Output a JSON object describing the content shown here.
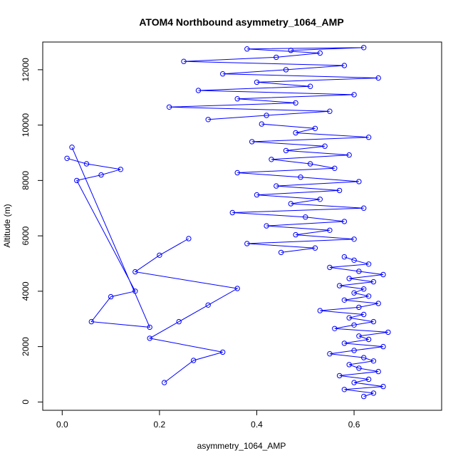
{
  "chart_data": {
    "type": "scatter",
    "title": "ATOM4 Northbound asymmetry_1064_AMP",
    "xlabel": "asymmetry_1064_AMP",
    "ylabel": "Altitude (m)",
    "xlim": [
      -0.04,
      0.78
    ],
    "ylim": [
      -300,
      13000
    ],
    "x_ticks": [
      0.0,
      0.2,
      0.4,
      0.6
    ],
    "x_tick_labels": [
      "0.0",
      "0.2",
      "0.4",
      "0.6"
    ],
    "y_ticks": [
      0,
      2000,
      4000,
      6000,
      8000,
      10000,
      12000
    ],
    "y_tick_labels": [
      "0",
      "2000",
      "4000",
      "6000",
      "8000",
      "10000",
      "12000"
    ],
    "series_color": "#0000ff",
    "marker": "open-circle",
    "connected_lines": true,
    "grid": false,
    "series": [
      {
        "x": [
          0.62,
          0.64,
          0.58,
          0.66,
          0.6,
          0.63,
          0.57,
          0.65,
          0.61,
          0.59,
          0.64,
          0.62,
          0.55,
          0.6,
          0.66,
          0.58,
          0.63,
          0.61,
          0.67,
          0.56,
          0.6,
          0.64,
          0.59,
          0.62,
          0.53,
          0.61,
          0.65,
          0.58,
          0.63,
          0.6,
          0.62,
          0.57,
          0.64,
          0.59,
          0.66,
          0.61,
          0.55,
          0.63,
          0.6,
          0.58
        ],
        "y": [
          200,
          320,
          450,
          560,
          700,
          820,
          950,
          1100,
          1220,
          1350,
          1480,
          1600,
          1740,
          1860,
          2000,
          2120,
          2260,
          2380,
          2520,
          2650,
          2780,
          2900,
          3040,
          3160,
          3300,
          3420,
          3560,
          3680,
          3820,
          3940,
          4080,
          4200,
          4340,
          4460,
          4600,
          4720,
          4860,
          4980,
          5120,
          5240
        ]
      },
      {
        "x": [
          0.45,
          0.52,
          0.38,
          0.6,
          0.48,
          0.55,
          0.42,
          0.58,
          0.5,
          0.35,
          0.62,
          0.47,
          0.53,
          0.4,
          0.57,
          0.44,
          0.61,
          0.49,
          0.36,
          0.56,
          0.51,
          0.43,
          0.59,
          0.46,
          0.54,
          0.39,
          0.63,
          0.48,
          0.52,
          0.41
        ],
        "y": [
          5400,
          5560,
          5720,
          5880,
          6040,
          6200,
          6360,
          6520,
          6680,
          6840,
          7000,
          7160,
          7320,
          7480,
          7640,
          7800,
          7960,
          8120,
          8280,
          8440,
          8600,
          8760,
          8920,
          9080,
          9240,
          9400,
          9560,
          9720,
          9880,
          10040
        ]
      },
      {
        "x": [
          0.3,
          0.42,
          0.55,
          0.22,
          0.48,
          0.36,
          0.6,
          0.28,
          0.51,
          0.4,
          0.65,
          0.33,
          0.46,
          0.58,
          0.25,
          0.44,
          0.53,
          0.38,
          0.62,
          0.47
        ],
        "y": [
          10200,
          10350,
          10500,
          10650,
          10800,
          10950,
          11100,
          11250,
          11400,
          11550,
          11700,
          11850,
          12000,
          12150,
          12300,
          12450,
          12600,
          12750,
          12800,
          12700
        ]
      },
      {
        "x": [
          0.01,
          0.05,
          0.12,
          0.08,
          0.03,
          0.15,
          0.1,
          0.06,
          0.18,
          0.02
        ],
        "y": [
          8800,
          8600,
          8400,
          8200,
          8000,
          4000,
          3800,
          2900,
          2700,
          9200
        ]
      },
      {
        "x": [
          0.21,
          0.27,
          0.33,
          0.18,
          0.24,
          0.3,
          0.36,
          0.15,
          0.2,
          0.26
        ],
        "y": [
          700,
          1500,
          1800,
          2300,
          2900,
          3500,
          4100,
          4700,
          5300,
          5900
        ]
      }
    ]
  }
}
